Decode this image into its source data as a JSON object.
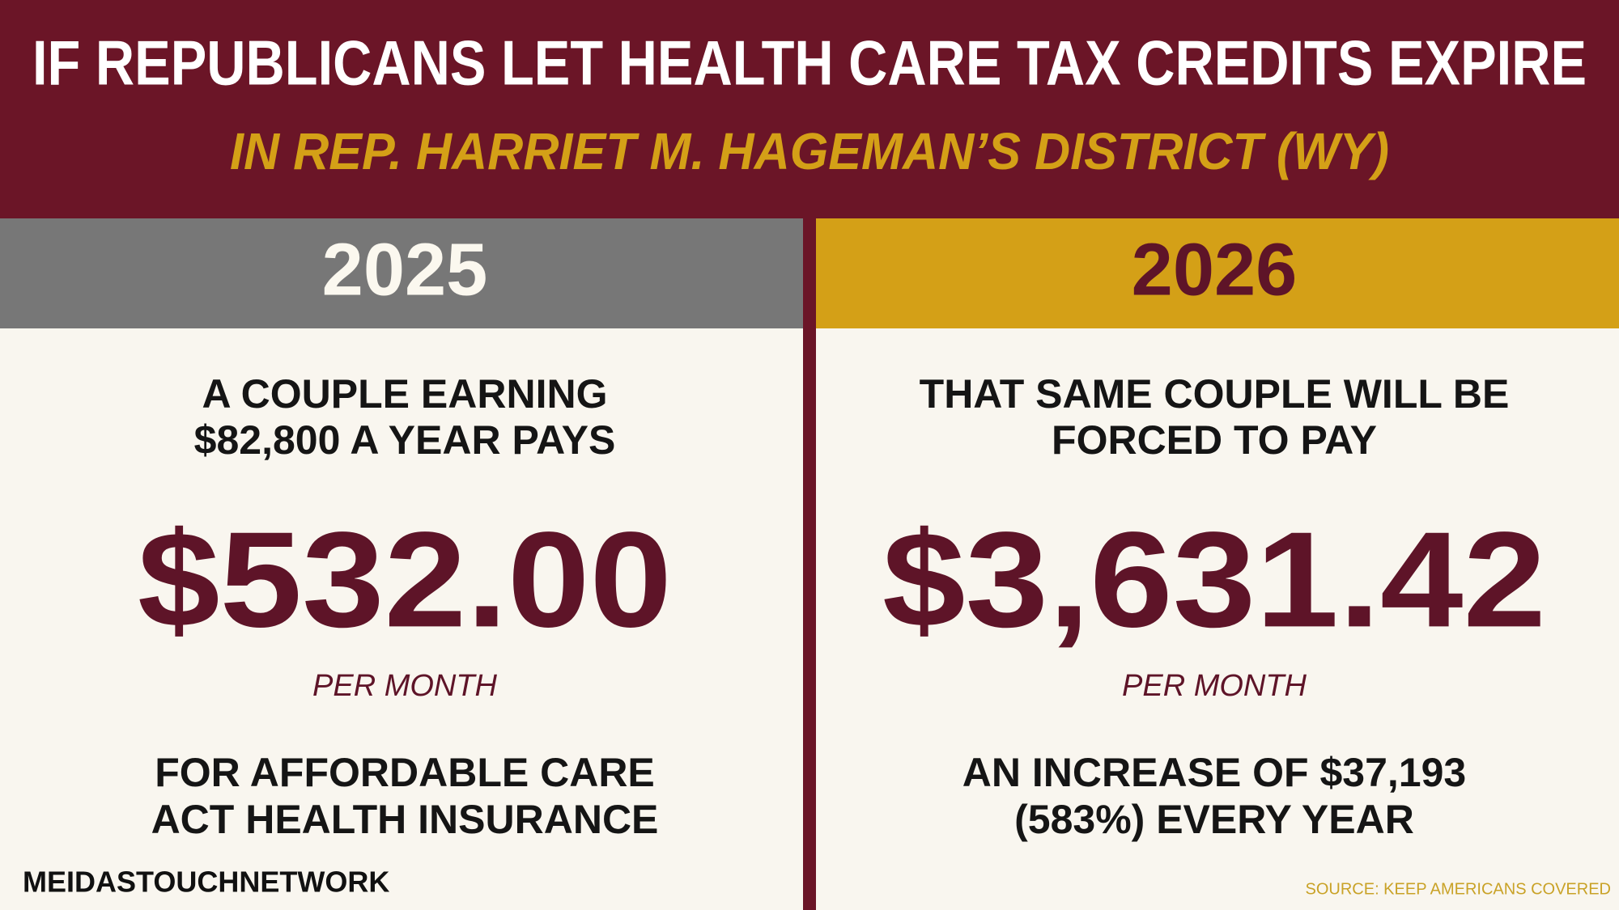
{
  "header": {
    "title": "IF REPUBLICANS LET HEALTH CARE TAX CREDITS EXPIRE",
    "subtitle": "IN REP. HARRIET M. HAGEMAN’S DISTRICT (WY)"
  },
  "panels": [
    {
      "year": "2025",
      "intro_lines": [
        "A COUPLE EARNING",
        "$82,800 A YEAR PAYS"
      ],
      "amount": "$532.00",
      "unit": "PER MONTH",
      "outro_lines": [
        "FOR AFFORDABLE CARE",
        "ACT HEALTH INSURANCE"
      ]
    },
    {
      "year": "2026",
      "intro_lines": [
        "THAT SAME COUPLE WILL BE",
        "FORCED TO PAY"
      ],
      "amount": "$3,631.42",
      "unit": "PER MONTH",
      "outro_lines": [
        "AN INCREASE OF $37,193",
        "(583%) EVERY YEAR"
      ]
    }
  ],
  "branding": "MEIDASTOUCHNETWORK",
  "source": "SOURCE: KEEP AMERICANS COVERED"
}
